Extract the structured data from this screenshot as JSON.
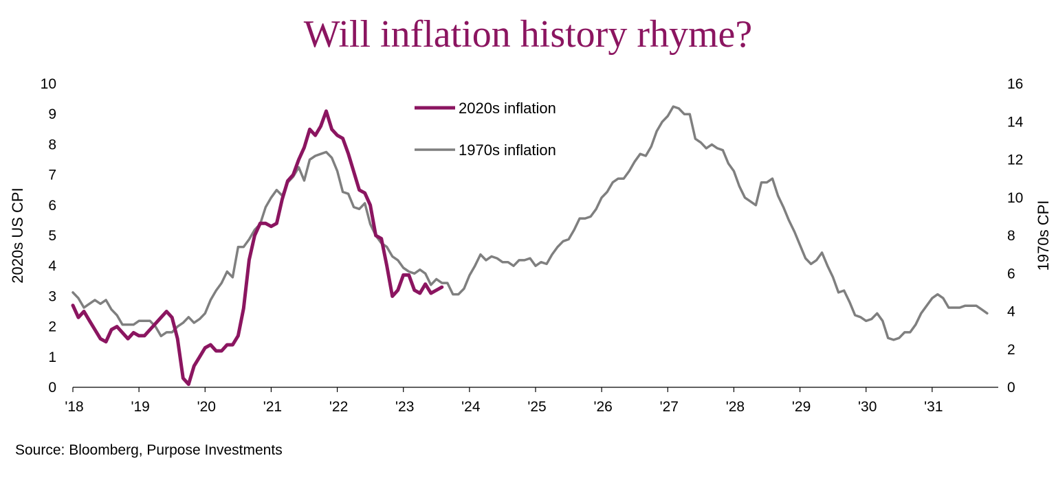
{
  "title": "Will inflation history rhyme?",
  "source": "Source: Bloomberg, Purpose Investments",
  "colors": {
    "title": "#8B1560",
    "series_2020s": "#8B1560",
    "series_1970s": "#7F7F7F",
    "axis": "#000000"
  },
  "chart_data": {
    "type": "line",
    "title": "Will inflation history rhyme?",
    "ylabel_left": "2020s US CPI",
    "ylabel_right": "1970s CPI",
    "ylim_left": [
      0,
      10
    ],
    "ylim_right": [
      0,
      16
    ],
    "xlim": [
      2018,
      2032
    ],
    "x_tick_labels": [
      "'18",
      "'19",
      "'20",
      "'21",
      "'22",
      "'23",
      "'24",
      "'25",
      "'26",
      "'27",
      "'28",
      "'29",
      "'30",
      "'31"
    ],
    "x_tick_values": [
      2018,
      2019,
      2020,
      2021,
      2022,
      2023,
      2024,
      2025,
      2026,
      2027,
      2028,
      2029,
      2030,
      2031
    ],
    "y_ticks_left": [
      0,
      1,
      2,
      3,
      4,
      5,
      6,
      7,
      8,
      9,
      10
    ],
    "y_ticks_right": [
      0,
      2,
      4,
      6,
      8,
      10,
      12,
      14,
      16
    ],
    "grid": false,
    "legend_position": "top-center",
    "series": [
      {
        "name": "2020s inflation",
        "axis": "left",
        "x": [
          2018.0,
          2018.083,
          2018.167,
          2018.25,
          2018.333,
          2018.417,
          2018.5,
          2018.583,
          2018.667,
          2018.75,
          2018.833,
          2018.917,
          2019.0,
          2019.083,
          2019.167,
          2019.25,
          2019.333,
          2019.417,
          2019.5,
          2019.583,
          2019.667,
          2019.75,
          2019.833,
          2019.917,
          2020.0,
          2020.083,
          2020.167,
          2020.25,
          2020.333,
          2020.417,
          2020.5,
          2020.583,
          2020.667,
          2020.75,
          2020.833,
          2020.917,
          2021.0,
          2021.083,
          2021.167,
          2021.25,
          2021.333,
          2021.417,
          2021.5,
          2021.583,
          2021.667,
          2021.75,
          2021.833,
          2021.917,
          2022.0,
          2022.083,
          2022.167,
          2022.25,
          2022.333,
          2022.417,
          2022.5,
          2022.583,
          2022.667,
          2022.75,
          2022.833,
          2022.917,
          2023.0,
          2023.083,
          2023.167,
          2023.25,
          2023.333,
          2023.417,
          2023.5,
          2023.583
        ],
        "values": [
          2.7,
          2.3,
          2.5,
          2.2,
          1.9,
          1.6,
          1.5,
          1.9,
          2.0,
          1.8,
          1.6,
          1.8,
          1.7,
          1.7,
          1.9,
          2.1,
          2.3,
          2.5,
          2.3,
          1.6,
          0.3,
          0.1,
          0.7,
          1.0,
          1.3,
          1.4,
          1.2,
          1.2,
          1.4,
          1.4,
          1.7,
          2.6,
          4.2,
          5.0,
          5.4,
          5.4,
          5.3,
          5.4,
          6.2,
          6.8,
          7.0,
          7.5,
          7.9,
          8.5,
          8.3,
          8.6,
          9.1,
          8.5,
          8.3,
          8.2,
          7.7,
          7.1,
          6.5,
          6.4,
          6.0,
          5.0,
          4.9,
          4.0,
          3.0,
          3.2,
          3.7,
          3.7,
          3.2,
          3.1,
          3.4,
          3.1,
          3.2,
          3.3
        ]
      },
      {
        "name": "1970s inflation",
        "axis": "right",
        "x": [
          2018.0,
          2018.083,
          2018.167,
          2018.25,
          2018.333,
          2018.417,
          2018.5,
          2018.583,
          2018.667,
          2018.75,
          2018.833,
          2018.917,
          2019.0,
          2019.083,
          2019.167,
          2019.25,
          2019.333,
          2019.417,
          2019.5,
          2019.583,
          2019.667,
          2019.75,
          2019.833,
          2019.917,
          2020.0,
          2020.083,
          2020.167,
          2020.25,
          2020.333,
          2020.417,
          2020.5,
          2020.583,
          2020.667,
          2020.75,
          2020.833,
          2020.917,
          2021.0,
          2021.083,
          2021.167,
          2021.25,
          2021.333,
          2021.417,
          2021.5,
          2021.583,
          2021.667,
          2021.75,
          2021.833,
          2021.917,
          2022.0,
          2022.083,
          2022.167,
          2022.25,
          2022.333,
          2022.417,
          2022.5,
          2022.583,
          2022.667,
          2022.75,
          2022.833,
          2022.917,
          2023.0,
          2023.083,
          2023.167,
          2023.25,
          2023.333,
          2023.417,
          2023.5,
          2023.583,
          2023.667,
          2023.75,
          2023.833,
          2023.917,
          2024.0,
          2024.083,
          2024.167,
          2024.25,
          2024.333,
          2024.417,
          2024.5,
          2024.583,
          2024.667,
          2024.75,
          2024.833,
          2024.917,
          2025.0,
          2025.083,
          2025.167,
          2025.25,
          2025.333,
          2025.417,
          2025.5,
          2025.583,
          2025.667,
          2025.75,
          2025.833,
          2025.917,
          2026.0,
          2026.083,
          2026.167,
          2026.25,
          2026.333,
          2026.417,
          2026.5,
          2026.583,
          2026.667,
          2026.75,
          2026.833,
          2026.917,
          2027.0,
          2027.083,
          2027.167,
          2027.25,
          2027.333,
          2027.417,
          2027.5,
          2027.583,
          2027.667,
          2027.75,
          2027.833,
          2027.917,
          2028.0,
          2028.083,
          2028.167,
          2028.25,
          2028.333,
          2028.417,
          2028.5,
          2028.583,
          2028.667,
          2028.75,
          2028.833,
          2028.917,
          2029.0,
          2029.083,
          2029.167,
          2029.25,
          2029.333,
          2029.417,
          2029.5,
          2029.583,
          2029.667,
          2029.75,
          2029.833,
          2029.917,
          2030.0,
          2030.083,
          2030.167,
          2030.25,
          2030.333,
          2030.417,
          2030.5,
          2030.583,
          2030.667,
          2030.75,
          2030.833,
          2030.917,
          2031.0,
          2031.083,
          2031.167,
          2031.25,
          2031.333,
          2031.417,
          2031.5,
          2031.583,
          2031.667,
          2031.75,
          2031.833
        ],
        "values": [
          5.0,
          4.7,
          4.2,
          4.4,
          4.6,
          4.4,
          4.6,
          4.1,
          3.8,
          3.3,
          3.3,
          3.3,
          3.5,
          3.5,
          3.5,
          3.2,
          2.7,
          2.9,
          2.9,
          3.2,
          3.4,
          3.7,
          3.4,
          3.6,
          3.9,
          4.6,
          5.1,
          5.5,
          6.1,
          5.8,
          7.4,
          7.4,
          7.8,
          8.3,
          8.6,
          9.5,
          10.0,
          10.4,
          10.1,
          10.8,
          11.1,
          11.6,
          10.9,
          12.0,
          12.2,
          12.3,
          12.4,
          12.1,
          11.4,
          10.3,
          10.2,
          9.5,
          9.4,
          9.7,
          8.6,
          8.0,
          7.6,
          7.4,
          6.9,
          6.7,
          6.3,
          6.1,
          6.0,
          6.2,
          6.0,
          5.4,
          5.7,
          5.5,
          5.5,
          4.9,
          4.9,
          5.2,
          5.9,
          6.4,
          7.0,
          6.7,
          6.9,
          6.8,
          6.6,
          6.6,
          6.4,
          6.7,
          6.7,
          6.8,
          6.4,
          6.6,
          6.5,
          7.0,
          7.4,
          7.7,
          7.8,
          8.3,
          8.9,
          8.9,
          9.0,
          9.4,
          10.0,
          10.3,
          10.8,
          11.0,
          11.0,
          11.4,
          11.9,
          12.3,
          12.2,
          12.7,
          13.5,
          14.0,
          14.3,
          14.8,
          14.7,
          14.4,
          14.4,
          13.1,
          12.9,
          12.6,
          12.8,
          12.6,
          12.5,
          11.8,
          11.4,
          10.6,
          10.0,
          9.8,
          9.6,
          10.8,
          10.8,
          11.0,
          10.1,
          9.5,
          8.8,
          8.2,
          7.5,
          6.8,
          6.5,
          6.7,
          7.1,
          6.4,
          5.8,
          5.0,
          5.1,
          4.5,
          3.8,
          3.7,
          3.5,
          3.6,
          3.9,
          3.5,
          2.6,
          2.5,
          2.6,
          2.9,
          2.9,
          3.3,
          3.9,
          4.3,
          4.7,
          4.9,
          4.7,
          4.2,
          4.2,
          4.2,
          4.3,
          4.3,
          4.3,
          4.1,
          3.9
        ]
      }
    ]
  }
}
